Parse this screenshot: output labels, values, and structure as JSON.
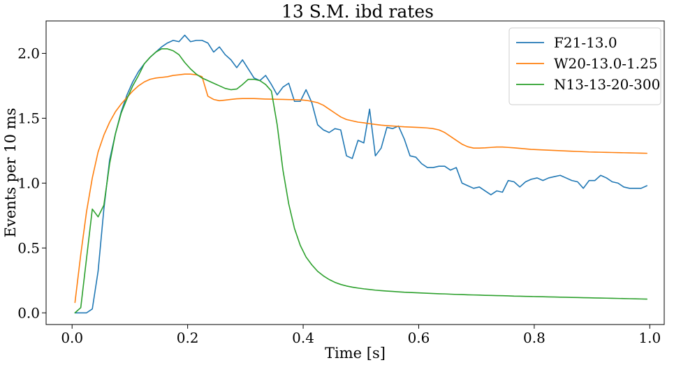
{
  "chart_data": {
    "type": "line",
    "title": "13 S.M. ibd rates",
    "xlabel": "Time [s]",
    "ylabel": "Events per 10 ms",
    "xlim": [
      -0.045,
      1.025
    ],
    "ylim": [
      -0.09,
      2.25
    ],
    "xticks": [
      0.0,
      0.2,
      0.4,
      0.6,
      0.8,
      1.0
    ],
    "xtick_labels": [
      "0.0",
      "0.2",
      "0.4",
      "0.6",
      "0.8",
      "1.0"
    ],
    "yticks": [
      0.0,
      0.5,
      1.0,
      1.5,
      2.0
    ],
    "ytick_labels": [
      "0.0",
      "0.5",
      "1.0",
      "1.5",
      "2.0"
    ],
    "grid": false,
    "legend_position": "top-right",
    "series": [
      {
        "name": "F21-13.0",
        "color": "#1f77b4",
        "x": [
          0.005,
          0.015,
          0.025,
          0.035,
          0.045,
          0.055,
          0.065,
          0.075,
          0.085,
          0.095,
          0.105,
          0.115,
          0.125,
          0.135,
          0.145,
          0.155,
          0.165,
          0.175,
          0.185,
          0.195,
          0.205,
          0.215,
          0.225,
          0.235,
          0.245,
          0.255,
          0.265,
          0.275,
          0.285,
          0.295,
          0.305,
          0.315,
          0.325,
          0.335,
          0.345,
          0.355,
          0.365,
          0.375,
          0.385,
          0.395,
          0.405,
          0.415,
          0.425,
          0.435,
          0.445,
          0.455,
          0.465,
          0.475,
          0.485,
          0.495,
          0.505,
          0.515,
          0.525,
          0.535,
          0.545,
          0.555,
          0.565,
          0.575,
          0.585,
          0.595,
          0.605,
          0.615,
          0.625,
          0.635,
          0.645,
          0.655,
          0.665,
          0.675,
          0.685,
          0.695,
          0.705,
          0.715,
          0.725,
          0.735,
          0.745,
          0.755,
          0.765,
          0.775,
          0.785,
          0.795,
          0.805,
          0.815,
          0.825,
          0.835,
          0.845,
          0.855,
          0.865,
          0.875,
          0.885,
          0.895,
          0.905,
          0.915,
          0.925,
          0.935,
          0.945,
          0.955,
          0.965,
          0.975,
          0.985,
          0.995
        ],
        "y": [
          0.0,
          0.0,
          0.0,
          0.03,
          0.32,
          0.8,
          1.18,
          1.38,
          1.55,
          1.68,
          1.78,
          1.86,
          1.92,
          1.97,
          2.01,
          2.05,
          2.08,
          2.1,
          2.09,
          2.14,
          2.09,
          2.1,
          2.1,
          2.08,
          2.01,
          2.05,
          1.99,
          1.95,
          1.89,
          1.95,
          1.88,
          1.81,
          1.79,
          1.83,
          1.76,
          1.68,
          1.74,
          1.77,
          1.63,
          1.63,
          1.72,
          1.62,
          1.45,
          1.41,
          1.39,
          1.42,
          1.41,
          1.21,
          1.19,
          1.33,
          1.31,
          1.57,
          1.21,
          1.27,
          1.43,
          1.42,
          1.44,
          1.34,
          1.21,
          1.2,
          1.15,
          1.12,
          1.12,
          1.13,
          1.13,
          1.1,
          1.12,
          1.0,
          0.98,
          0.96,
          0.97,
          0.94,
          0.91,
          0.94,
          0.93,
          1.02,
          1.01,
          0.97,
          1.01,
          1.03,
          1.04,
          1.02,
          1.04,
          1.05,
          1.06,
          1.04,
          1.02,
          1.01,
          0.96,
          1.02,
          1.02,
          1.06,
          1.04,
          1.01,
          1.0,
          0.97,
          0.96,
          0.96,
          0.96,
          0.98
        ]
      },
      {
        "name": "W20-13.0-1.25",
        "color": "#ff7f0e",
        "x": [
          0.005,
          0.015,
          0.025,
          0.035,
          0.045,
          0.055,
          0.065,
          0.075,
          0.085,
          0.095,
          0.105,
          0.115,
          0.125,
          0.135,
          0.145,
          0.155,
          0.165,
          0.175,
          0.185,
          0.195,
          0.205,
          0.215,
          0.225,
          0.235,
          0.245,
          0.255,
          0.265,
          0.275,
          0.285,
          0.295,
          0.305,
          0.315,
          0.325,
          0.335,
          0.345,
          0.355,
          0.365,
          0.375,
          0.385,
          0.395,
          0.405,
          0.415,
          0.425,
          0.435,
          0.445,
          0.455,
          0.465,
          0.475,
          0.485,
          0.495,
          0.505,
          0.515,
          0.525,
          0.535,
          0.545,
          0.555,
          0.565,
          0.575,
          0.585,
          0.595,
          0.605,
          0.615,
          0.625,
          0.635,
          0.645,
          0.655,
          0.665,
          0.675,
          0.685,
          0.695,
          0.705,
          0.715,
          0.725,
          0.735,
          0.745,
          0.755,
          0.765,
          0.775,
          0.785,
          0.795,
          0.805,
          0.815,
          0.825,
          0.835,
          0.845,
          0.855,
          0.865,
          0.875,
          0.885,
          0.895,
          0.905,
          0.915,
          0.925,
          0.935,
          0.945,
          0.955,
          0.965,
          0.975,
          0.985,
          0.995
        ],
        "y": [
          0.08,
          0.45,
          0.78,
          1.04,
          1.24,
          1.37,
          1.47,
          1.55,
          1.61,
          1.66,
          1.71,
          1.75,
          1.78,
          1.8,
          1.81,
          1.815,
          1.82,
          1.83,
          1.835,
          1.84,
          1.84,
          1.835,
          1.82,
          1.67,
          1.645,
          1.635,
          1.64,
          1.645,
          1.65,
          1.652,
          1.652,
          1.652,
          1.65,
          1.648,
          1.647,
          1.646,
          1.645,
          1.644,
          1.643,
          1.642,
          1.638,
          1.63,
          1.62,
          1.6,
          1.57,
          1.54,
          1.51,
          1.49,
          1.48,
          1.47,
          1.465,
          1.458,
          1.452,
          1.447,
          1.443,
          1.44,
          1.437,
          1.434,
          1.432,
          1.43,
          1.428,
          1.425,
          1.42,
          1.41,
          1.39,
          1.36,
          1.33,
          1.3,
          1.28,
          1.27,
          1.27,
          1.272,
          1.275,
          1.278,
          1.278,
          1.275,
          1.272,
          1.268,
          1.264,
          1.26,
          1.258,
          1.256,
          1.254,
          1.252,
          1.25,
          1.248,
          1.246,
          1.244,
          1.242,
          1.24,
          1.239,
          1.238,
          1.237,
          1.236,
          1.235,
          1.234,
          1.233,
          1.232,
          1.231,
          1.23
        ]
      },
      {
        "name": "N13-13-20-300",
        "color": "#2ca02c",
        "x": [
          0.005,
          0.015,
          0.025,
          0.035,
          0.045,
          0.055,
          0.065,
          0.075,
          0.085,
          0.095,
          0.105,
          0.115,
          0.125,
          0.135,
          0.145,
          0.155,
          0.165,
          0.175,
          0.185,
          0.195,
          0.205,
          0.215,
          0.225,
          0.235,
          0.245,
          0.255,
          0.265,
          0.275,
          0.285,
          0.295,
          0.305,
          0.315,
          0.325,
          0.335,
          0.345,
          0.355,
          0.365,
          0.375,
          0.385,
          0.395,
          0.405,
          0.415,
          0.425,
          0.435,
          0.445,
          0.455,
          0.465,
          0.475,
          0.485,
          0.495,
          0.505,
          0.515,
          0.525,
          0.535,
          0.545,
          0.555,
          0.565,
          0.575,
          0.585,
          0.595,
          0.605,
          0.615,
          0.625,
          0.635,
          0.645,
          0.655,
          0.665,
          0.675,
          0.685,
          0.695,
          0.705,
          0.715,
          0.725,
          0.735,
          0.745,
          0.755,
          0.765,
          0.775,
          0.785,
          0.795,
          0.805,
          0.815,
          0.825,
          0.835,
          0.845,
          0.855,
          0.865,
          0.875,
          0.885,
          0.895,
          0.905,
          0.915,
          0.925,
          0.935,
          0.945,
          0.955,
          0.965,
          0.975,
          0.985,
          0.995
        ],
        "y": [
          0.0,
          0.04,
          0.42,
          0.8,
          0.74,
          0.83,
          1.15,
          1.38,
          1.54,
          1.65,
          1.75,
          1.83,
          1.92,
          1.97,
          2.01,
          2.035,
          2.035,
          2.02,
          1.99,
          1.93,
          1.88,
          1.84,
          1.81,
          1.79,
          1.77,
          1.75,
          1.73,
          1.72,
          1.725,
          1.76,
          1.8,
          1.8,
          1.79,
          1.76,
          1.71,
          1.45,
          1.1,
          0.84,
          0.65,
          0.52,
          0.43,
          0.37,
          0.32,
          0.285,
          0.257,
          0.235,
          0.219,
          0.207,
          0.198,
          0.191,
          0.185,
          0.18,
          0.175,
          0.171,
          0.168,
          0.165,
          0.162,
          0.159,
          0.157,
          0.155,
          0.153,
          0.151,
          0.149,
          0.147,
          0.146,
          0.144,
          0.142,
          0.141,
          0.139,
          0.138,
          0.137,
          0.135,
          0.134,
          0.133,
          0.132,
          0.131,
          0.129,
          0.128,
          0.127,
          0.126,
          0.125,
          0.124,
          0.123,
          0.122,
          0.121,
          0.12,
          0.119,
          0.118,
          0.117,
          0.116,
          0.115,
          0.114,
          0.113,
          0.112,
          0.111,
          0.11,
          0.109,
          0.108,
          0.107,
          0.106
        ]
      }
    ]
  }
}
